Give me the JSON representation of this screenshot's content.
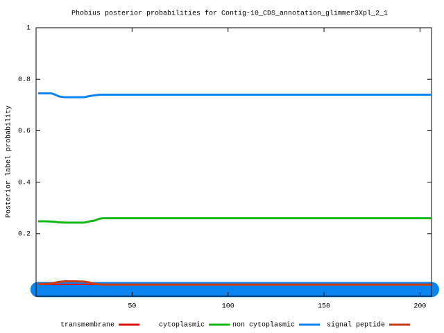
{
  "chart_data": {
    "type": "line",
    "title": "Phobius posterior probabilities for Contig-10_CDS_annotation_glimmer3Xpl_2_1",
    "ylabel": "Posterior label probability",
    "x": [
      1,
      5,
      8,
      10,
      12,
      15,
      20,
      25,
      28,
      30,
      33,
      35,
      206
    ],
    "series": [
      {
        "name": "transmembrane",
        "color": "#e01010",
        "values": [
          0.003,
          0.003,
          0.003,
          0.003,
          0.003,
          0.003,
          0.003,
          0.003,
          0.003,
          0.003,
          0.003,
          0.003,
          0.003
        ]
      },
      {
        "name": "cytoplasmic",
        "color": "#14b814",
        "values": [
          0.248,
          0.248,
          0.247,
          0.246,
          0.244,
          0.243,
          0.243,
          0.243,
          0.248,
          0.25,
          0.258,
          0.26,
          0.26
        ]
      },
      {
        "name": "non cytoplasmic",
        "color": "#0a84f0",
        "values": [
          0.745,
          0.745,
          0.745,
          0.74,
          0.733,
          0.73,
          0.73,
          0.73,
          0.735,
          0.737,
          0.74,
          0.74,
          0.74
        ]
      },
      {
        "name": "signal peptide",
        "color": "#c83c14",
        "values": [
          0.005,
          0.005,
          0.007,
          0.01,
          0.013,
          0.015,
          0.015,
          0.014,
          0.01,
          0.006,
          0.003,
          0.002,
          0.002
        ]
      }
    ],
    "topology": {
      "start": 1,
      "end": 206,
      "y": -0.017,
      "color": "#0a84f0"
    },
    "xlim": [
      0,
      206
    ],
    "ylim": [
      -0.043,
      1
    ],
    "xticks": [
      50,
      100,
      150,
      200
    ],
    "yticks": [
      0.2,
      0.4,
      0.6,
      0.8,
      1
    ]
  }
}
